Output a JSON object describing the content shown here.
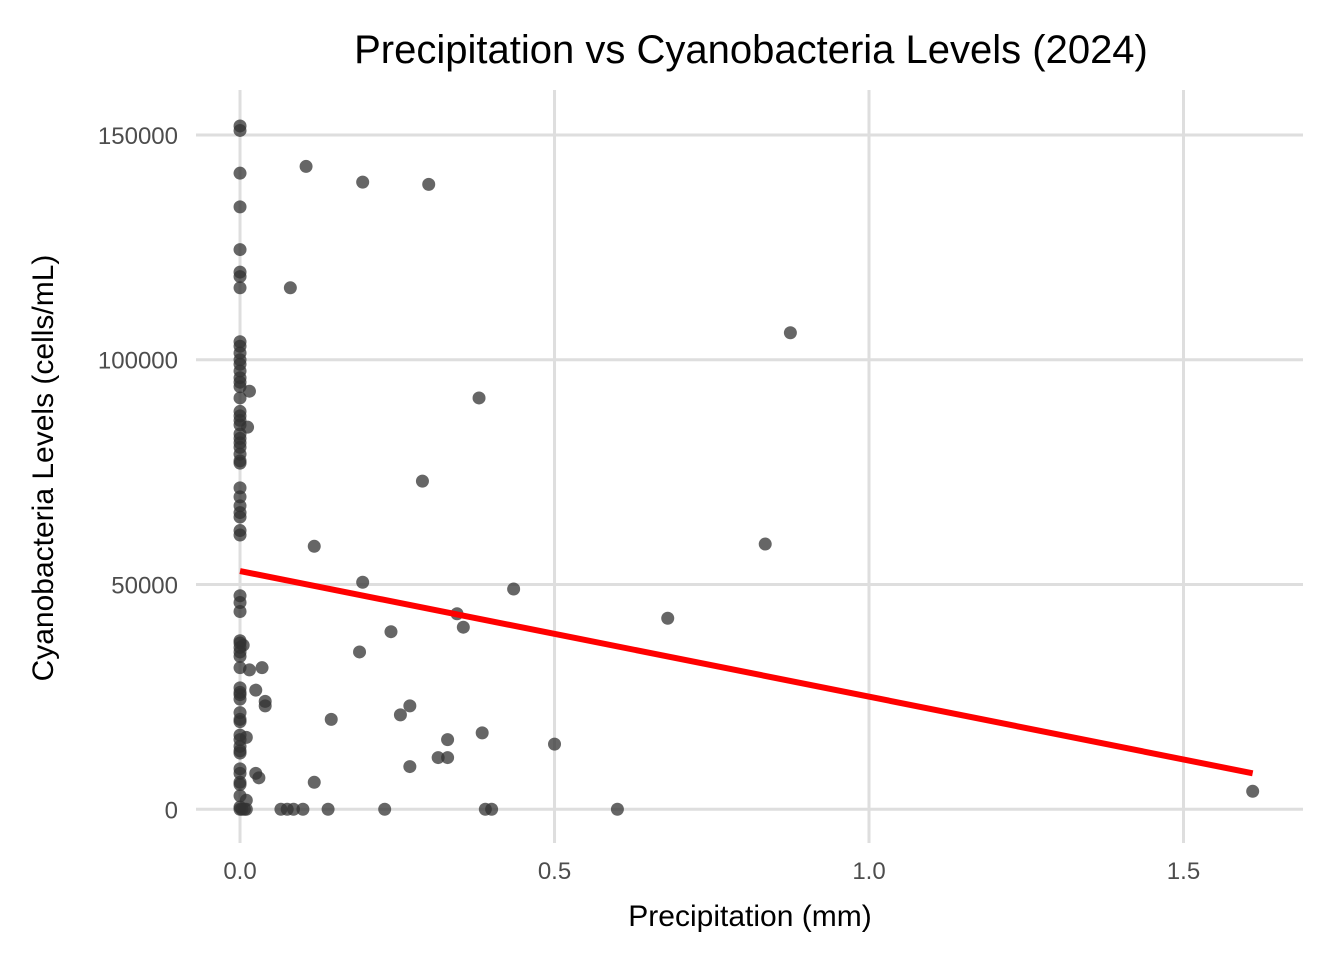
{
  "chart_data": {
    "type": "scatter",
    "title": "Precipitation vs Cyanobacteria Levels (2024)",
    "xlabel": "Precipitation (mm)",
    "ylabel": "Cyanobacteria Levels (cells/mL)",
    "xlim": [
      -0.07,
      1.69
    ],
    "ylim": [
      -7500,
      160000
    ],
    "x_ticks": [
      0.0,
      0.5,
      1.0,
      1.5
    ],
    "x_tick_labels": [
      "0.0",
      "0.5",
      "1.0",
      "1.5"
    ],
    "y_ticks": [
      0,
      50000,
      100000,
      150000
    ],
    "y_tick_labels": [
      "0",
      "50000",
      "100000",
      "150000"
    ],
    "grid": true,
    "legend": "none",
    "colors": {
      "points": "#333333",
      "trend": "#ff0000",
      "grid": "#dedede",
      "ticks": "#4d4d4d"
    },
    "points": [
      [
        0,
        152000
      ],
      [
        0,
        151000
      ],
      [
        0,
        141500
      ],
      [
        0,
        134000
      ],
      [
        0,
        124500
      ],
      [
        0,
        119500
      ],
      [
        0,
        118500
      ],
      [
        0,
        116000
      ],
      [
        0,
        104000
      ],
      [
        0,
        103000
      ],
      [
        0,
        101500
      ],
      [
        0,
        100000
      ],
      [
        0,
        99000
      ],
      [
        0,
        97500
      ],
      [
        0,
        96000
      ],
      [
        0,
        95000
      ],
      [
        0,
        94000
      ],
      [
        0,
        91500
      ],
      [
        0,
        88500
      ],
      [
        0,
        87500
      ],
      [
        0,
        86500
      ],
      [
        0,
        85500
      ],
      [
        0,
        83500
      ],
      [
        0,
        82500
      ],
      [
        0,
        81500
      ],
      [
        0,
        80500
      ],
      [
        0,
        79000
      ],
      [
        0,
        77500
      ],
      [
        0,
        77000
      ],
      [
        0,
        71500
      ],
      [
        0,
        69500
      ],
      [
        0,
        67500
      ],
      [
        0,
        66000
      ],
      [
        0,
        65000
      ],
      [
        0,
        62000
      ],
      [
        0,
        61000
      ],
      [
        0,
        47500
      ],
      [
        0,
        46000
      ],
      [
        0,
        44000
      ],
      [
        0,
        37500
      ],
      [
        0,
        37000
      ],
      [
        0,
        36000
      ],
      [
        0,
        35000
      ],
      [
        0,
        34000
      ],
      [
        0,
        31500
      ],
      [
        0,
        27000
      ],
      [
        0,
        26000
      ],
      [
        0,
        25500
      ],
      [
        0,
        24500
      ],
      [
        0,
        21500
      ],
      [
        0,
        20000
      ],
      [
        0,
        19500
      ],
      [
        0,
        16500
      ],
      [
        0,
        15500
      ],
      [
        0,
        14000
      ],
      [
        0,
        13000
      ],
      [
        0,
        12500
      ],
      [
        0,
        9000
      ],
      [
        0,
        8000
      ],
      [
        0,
        6000
      ],
      [
        0,
        5500
      ],
      [
        0,
        3000
      ],
      [
        0,
        500
      ],
      [
        0,
        0
      ],
      [
        0.003,
        0
      ],
      [
        0.007,
        0
      ],
      [
        0.01,
        0
      ],
      [
        0.005,
        36500
      ],
      [
        0.01,
        16000
      ],
      [
        0.01,
        2000
      ],
      [
        0.015,
        31000
      ],
      [
        0.015,
        93000
      ],
      [
        0.012,
        85000
      ],
      [
        0.025,
        26500
      ],
      [
        0.025,
        8000
      ],
      [
        0.03,
        7000
      ],
      [
        0.035,
        31500
      ],
      [
        0.04,
        24000
      ],
      [
        0.04,
        23000
      ],
      [
        0.065,
        0
      ],
      [
        0.075,
        0
      ],
      [
        0.085,
        0
      ],
      [
        0.1,
        0
      ],
      [
        0.08,
        116000
      ],
      [
        0.105,
        143000
      ],
      [
        0.118,
        58500
      ],
      [
        0.118,
        6000
      ],
      [
        0.14,
        0
      ],
      [
        0.145,
        20000
      ],
      [
        0.19,
        35000
      ],
      [
        0.195,
        139500
      ],
      [
        0.195,
        50500
      ],
      [
        0.23,
        0
      ],
      [
        0.24,
        39500
      ],
      [
        0.255,
        21000
      ],
      [
        0.27,
        23000
      ],
      [
        0.27,
        9500
      ],
      [
        0.29,
        73000
      ],
      [
        0.3,
        139000
      ],
      [
        0.315,
        11500
      ],
      [
        0.33,
        15500
      ],
      [
        0.33,
        11500
      ],
      [
        0.345,
        43500
      ],
      [
        0.355,
        40500
      ],
      [
        0.38,
        91500
      ],
      [
        0.385,
        17000
      ],
      [
        0.39,
        0
      ],
      [
        0.4,
        0
      ],
      [
        0.435,
        49000
      ],
      [
        0.5,
        14500
      ],
      [
        0.6,
        0
      ],
      [
        0.68,
        42500
      ],
      [
        0.835,
        59000
      ],
      [
        0.875,
        106000
      ],
      [
        1.61,
        4000
      ]
    ],
    "trend_line": {
      "x": [
        0,
        1.61
      ],
      "y": [
        53000,
        8000
      ]
    }
  }
}
